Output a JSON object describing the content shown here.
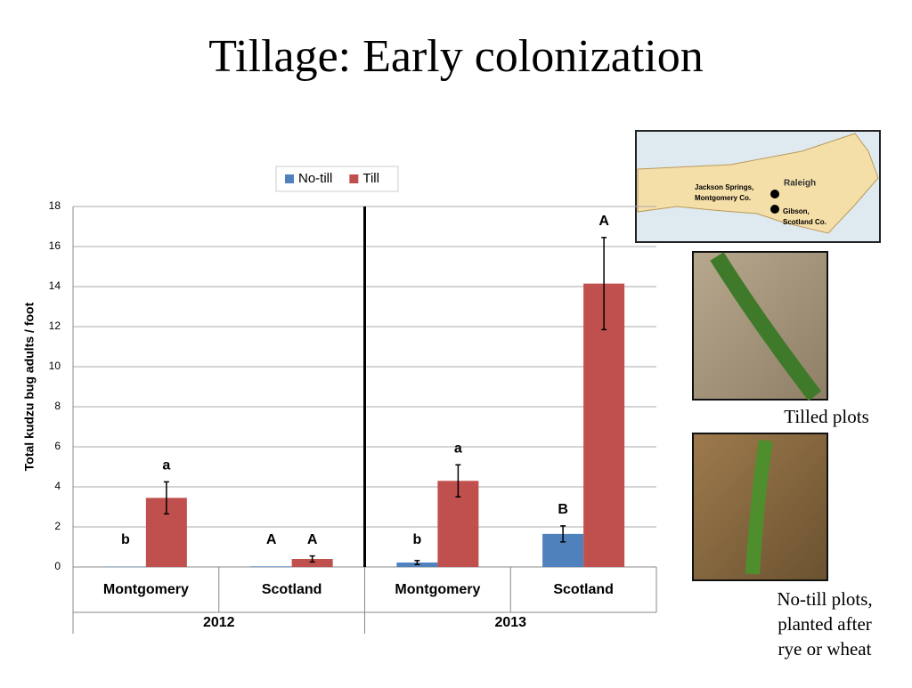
{
  "slide_title": "Tillage: Early colonization",
  "map": {
    "labels": [
      "Raleigh",
      "Jackson Springs,",
      "Montgomery Co.",
      "Gibson,",
      "Scotland Co."
    ]
  },
  "photos": {
    "tilled_caption": "Tilled plots",
    "notill_caption": [
      "No-till plots,",
      "planted after",
      "rye or wheat"
    ]
  },
  "chart_data": {
    "type": "bar",
    "y_label": "Total kudzu bug adults / foot",
    "categories": [
      "Montgomery",
      "Scotland",
      "Montgomery",
      "Scotland"
    ],
    "group_labels": [
      "2012",
      "2013"
    ],
    "series": [
      {
        "name": "No-till",
        "color": "#4f81bd",
        "values": [
          0.02,
          0.03,
          0.22,
          1.65
        ],
        "errors": [
          0,
          0,
          0.1,
          0.4
        ],
        "letters": [
          "b",
          "A",
          "b",
          "B"
        ]
      },
      {
        "name": "Till",
        "color": "#c0504d",
        "values": [
          3.45,
          0.4,
          4.3,
          14.15
        ],
        "errors": [
          0.8,
          0.15,
          0.8,
          2.3
        ],
        "letters": [
          "a",
          "A",
          "a",
          "A"
        ]
      }
    ],
    "ylim": [
      0,
      18
    ],
    "yticks": [
      0,
      2,
      4,
      6,
      8,
      10,
      12,
      14,
      16,
      18
    ],
    "grid": true,
    "legend": "top"
  }
}
